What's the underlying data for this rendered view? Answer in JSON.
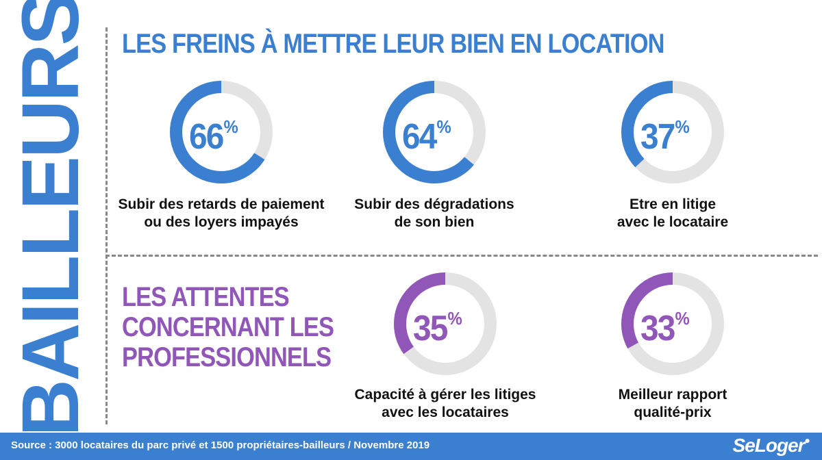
{
  "colors": {
    "blue": "#3b7fd0",
    "purple": "#9056b8",
    "track": "#e3e3e3",
    "footer": "#3b7fd0"
  },
  "side_title": "BAILLEURS",
  "top_section": {
    "title": "LES FREINS À METTRE LEUR BIEN EN LOCATION"
  },
  "bottom_section": {
    "title_lines": [
      "LES ATTENTES",
      "CONCERNANT LES",
      "PROFESSIONNELS"
    ]
  },
  "chart_data": {
    "type": "donut",
    "unit": "%",
    "groups": [
      {
        "title": "LES FREINS À METTRE LEUR BIEN EN LOCATION",
        "color": "#3b7fd0",
        "items": [
          {
            "value": 66,
            "label": "66",
            "caption_lines": [
              "Subir des retards de paiement",
              "ou des loyers impayés"
            ]
          },
          {
            "value": 64,
            "label": "64",
            "caption_lines": [
              "Subir des dégradations",
              "de son bien"
            ]
          },
          {
            "value": 37,
            "label": "37",
            "caption_lines": [
              "Etre en litige",
              "avec le locataire"
            ]
          }
        ]
      },
      {
        "title": "LES ATTENTES CONCERNANT LES PROFESSIONNELS",
        "color": "#9056b8",
        "items": [
          {
            "value": 35,
            "label": "35",
            "caption_lines": [
              "Capacité à gérer les litiges",
              "avec les locataires"
            ]
          },
          {
            "value": 33,
            "label": "33",
            "caption_lines": [
              "Meilleur rapport",
              "qualité-prix"
            ]
          }
        ]
      }
    ]
  },
  "footer": {
    "source": "Source : 3000 locataires du parc privé et 1500 propriétaires-bailleurs / Novembre 2019",
    "logo": "SeLoger"
  }
}
